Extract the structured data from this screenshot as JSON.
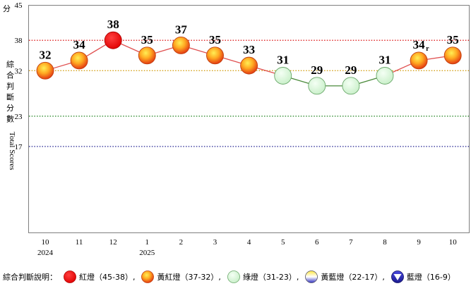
{
  "chart_data": {
    "type": "line",
    "categories": [
      "10",
      "11",
      "12",
      "1",
      "2",
      "3",
      "4",
      "5",
      "6",
      "7",
      "8",
      "9",
      "10"
    ],
    "year_labels": [
      {
        "index": 0,
        "text": "2024"
      },
      {
        "index": 3,
        "text": "2025"
      }
    ],
    "values": [
      32,
      34,
      38,
      35,
      37,
      35,
      33,
      31,
      29,
      29,
      31,
      34,
      35
    ],
    "value_labels": [
      "32",
      "34",
      "38",
      "35",
      "37",
      "35",
      "33",
      "31",
      "29",
      "29",
      "31",
      "34",
      "35"
    ],
    "revised_marks": [
      {
        "index": 11,
        "text": "r"
      }
    ],
    "point_signals": [
      "yellow-red",
      "yellow-red",
      "red",
      "yellow-red",
      "yellow-red",
      "yellow-red",
      "yellow-red",
      "green",
      "green",
      "green",
      "green",
      "yellow-red",
      "yellow-red"
    ],
    "ylim": [
      0,
      45
    ],
    "yticks": [
      "17",
      "23",
      "32",
      "38",
      "45"
    ],
    "y_unit": "分",
    "ylabel_cjk": [
      "綜",
      "合",
      "判",
      "斷",
      "分",
      "數"
    ],
    "ylabel_en": "Total Scores",
    "threshold_lines": [
      {
        "value": 38,
        "color": "#e03030"
      },
      {
        "value": 32,
        "color": "#d4a017"
      },
      {
        "value": 23,
        "color": "#2e8b2e"
      },
      {
        "value": 17,
        "color": "#333399"
      }
    ],
    "grid": false
  },
  "legend": {
    "title": "綜合判斷說明：",
    "items": [
      {
        "signal": "red",
        "text": "紅燈（45-38）,"
      },
      {
        "signal": "yellow-red",
        "text": "黃紅燈（37-32）,"
      },
      {
        "signal": "green",
        "text": "綠燈（31-23）,"
      },
      {
        "signal": "yellow-blue",
        "text": "黃藍燈（22-17）,"
      },
      {
        "signal": "blue",
        "text": "藍燈（16-9）"
      }
    ]
  },
  "colors": {
    "red_segment": "#e05050",
    "green_segment": "#4a8a3a",
    "frame": "#7f7f7f"
  }
}
